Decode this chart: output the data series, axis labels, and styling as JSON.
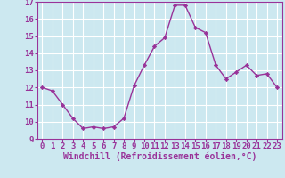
{
  "x": [
    0,
    1,
    2,
    3,
    4,
    5,
    6,
    7,
    8,
    9,
    10,
    11,
    12,
    13,
    14,
    15,
    16,
    17,
    18,
    19,
    20,
    21,
    22,
    23
  ],
  "y": [
    12.0,
    11.8,
    11.0,
    10.2,
    9.6,
    9.7,
    9.6,
    9.7,
    10.2,
    12.1,
    13.3,
    14.4,
    14.9,
    16.8,
    16.8,
    15.5,
    15.2,
    13.3,
    12.5,
    12.9,
    13.3,
    12.7,
    12.8,
    12.0
  ],
  "line_color": "#993399",
  "marker": "D",
  "marker_size": 2.2,
  "line_width": 1.0,
  "xlabel": "Windchill (Refroidissement éolien,°C)",
  "xlim": [
    -0.5,
    23.5
  ],
  "ylim": [
    9,
    17
  ],
  "yticks": [
    9,
    10,
    11,
    12,
    13,
    14,
    15,
    16,
    17
  ],
  "xticks": [
    0,
    1,
    2,
    3,
    4,
    5,
    6,
    7,
    8,
    9,
    10,
    11,
    12,
    13,
    14,
    15,
    16,
    17,
    18,
    19,
    20,
    21,
    22,
    23
  ],
  "background_color": "#cce8f0",
  "grid_color": "#ffffff",
  "tick_label_fontsize": 6.5,
  "xlabel_fontsize": 7.0,
  "tick_color": "#993399",
  "spine_color": "#993399"
}
